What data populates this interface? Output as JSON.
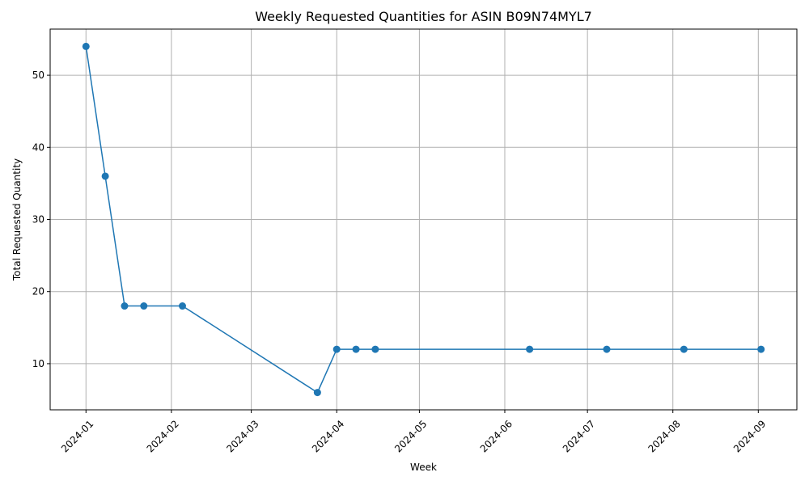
{
  "chart_data": {
    "type": "line",
    "title": "Weekly Requested Quantities for ASIN B09N74MYL7",
    "xlabel": "Week",
    "ylabel": "Total Requested Quantity",
    "x_ticks": [
      "2024-01",
      "2024-02",
      "2024-03",
      "2024-04",
      "2024-05",
      "2024-06",
      "2024-07",
      "2024-08",
      "2024-09"
    ],
    "y_ticks": [
      10,
      20,
      30,
      40,
      50
    ],
    "xlim": [
      "2023-12-19",
      "2024-09-15"
    ],
    "ylim": [
      3.6,
      56.4
    ],
    "grid": true,
    "series": [
      {
        "color": "#1f77b4",
        "points": [
          {
            "x": "2024-01-01",
            "y": 54
          },
          {
            "x": "2024-01-08",
            "y": 36
          },
          {
            "x": "2024-01-15",
            "y": 18
          },
          {
            "x": "2024-01-22",
            "y": 18
          },
          {
            "x": "2024-02-05",
            "y": 18
          },
          {
            "x": "2024-03-25",
            "y": 6
          },
          {
            "x": "2024-04-01",
            "y": 12
          },
          {
            "x": "2024-04-08",
            "y": 12
          },
          {
            "x": "2024-04-15",
            "y": 12
          },
          {
            "x": "2024-06-10",
            "y": 12
          },
          {
            "x": "2024-07-08",
            "y": 12
          },
          {
            "x": "2024-08-05",
            "y": 12
          },
          {
            "x": "2024-09-02",
            "y": 12
          }
        ]
      }
    ]
  }
}
